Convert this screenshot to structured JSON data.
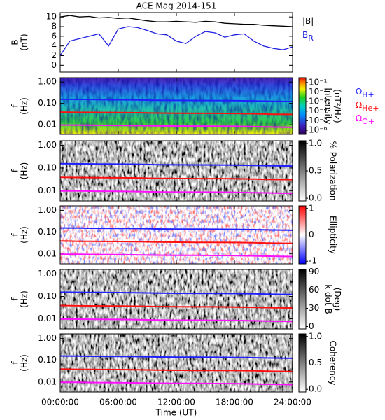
{
  "chart_data": [
    {
      "type": "line",
      "title": "ACE Mag 2014-151",
      "ylabel": [
        "B",
        "(nT)"
      ],
      "x": [
        0,
        1,
        2,
        3,
        4,
        5,
        6,
        7,
        8,
        9,
        10,
        11,
        12,
        13,
        14,
        15,
        16,
        17,
        18,
        19,
        20,
        21,
        22,
        23,
        24
      ],
      "xlim": [
        0,
        24
      ],
      "ylim": [
        -1.4,
        10.9
      ],
      "yticks": [
        0,
        2,
        4,
        6,
        8,
        10
      ],
      "series": [
        {
          "name": "|B|",
          "color": "#000000",
          "values": [
            10,
            10.3,
            10,
            10.1,
            9.8,
            9.9,
            9.7,
            9.8,
            9.5,
            9.2,
            9,
            9,
            9.1,
            9,
            8.9,
            9.1,
            9,
            8.7,
            8.6,
            8.5,
            8.5,
            8.3,
            8.2,
            8.1,
            8
          ]
        },
        {
          "name": "B",
          "subscript": "R",
          "color": "#2020e0",
          "values": [
            2,
            5,
            5.5,
            6,
            6.5,
            4,
            7.5,
            8,
            7.8,
            7.2,
            6.5,
            6.3,
            5,
            4.5,
            6,
            7,
            6.7,
            5.8,
            6.3,
            6.5,
            5,
            4,
            3.5,
            3.2,
            3.8
          ]
        }
      ]
    },
    {
      "type": "spectrogram",
      "colormap": "rainbow",
      "ylabel": [
        "f",
        "(Hz)"
      ],
      "log": true,
      "x": [
        0,
        2,
        4,
        6,
        8,
        10,
        12,
        14,
        16,
        18,
        20,
        22,
        24
      ],
      "xlim": [
        0,
        24
      ],
      "ylim": [
        0.0035,
        1.6
      ],
      "yticks": [
        {
          "value": 1,
          "label": "1.00"
        },
        {
          "value": 0.1,
          "label": "0.10"
        },
        {
          "value": 0.01,
          "label": "0.01"
        }
      ],
      "clabel": [
        "Intensity",
        "(nT²/Hz)"
      ],
      "clog": true,
      "clim": [
        3.6e-07,
        0.32
      ],
      "cticks": [
        {
          "value": 0.1,
          "label": "10⁻¹"
        },
        {
          "value": 0.01,
          "label": "10⁻²"
        },
        {
          "value": 0.001,
          "label": "10⁻³"
        },
        {
          "value": 0.0001,
          "label": "10⁻⁴"
        },
        {
          "value": 1e-05,
          "label": "10⁻⁵"
        },
        {
          "value": 1e-06,
          "label": "10⁻⁶"
        }
      ],
      "series": [
        {
          "name": "Ω",
          "subscript": "H+",
          "color": "#2020ff",
          "values": [
            0.155,
            0.153,
            0.15,
            0.148,
            0.146,
            0.14,
            0.138,
            0.137,
            0.136,
            0.134,
            0.13,
            0.125,
            0.122
          ]
        },
        {
          "name": "Ω",
          "subscript": "He+",
          "color": "#ff1010",
          "values": [
            0.039,
            0.038,
            0.0375,
            0.037,
            0.0365,
            0.035,
            0.0345,
            0.034,
            0.034,
            0.0335,
            0.0325,
            0.031,
            0.0305
          ]
        },
        {
          "name": "Ω",
          "subscript": "O+",
          "color": "#ff10ff",
          "values": [
            0.0097,
            0.0096,
            0.0094,
            0.0093,
            0.0091,
            0.0088,
            0.0086,
            0.0086,
            0.0085,
            0.0084,
            0.0081,
            0.0078,
            0.0076
          ]
        }
      ]
    },
    {
      "type": "spectrogram",
      "colormap": "gray",
      "ylabel": [
        "f",
        "(Hz)"
      ],
      "log": true,
      "x": [
        0,
        2,
        4,
        6,
        8,
        10,
        12,
        14,
        16,
        18,
        20,
        22,
        24
      ],
      "xlim": [
        0,
        24
      ],
      "ylim": [
        0.0035,
        1.6
      ],
      "yticks": [
        {
          "value": 1,
          "label": "1.00"
        },
        {
          "value": 0.1,
          "label": "0.10"
        },
        {
          "value": 0.01,
          "label": "0.01"
        }
      ],
      "clabel": [
        "% Polarization"
      ],
      "clim": [
        -0.05,
        1.05
      ],
      "cticks": [
        {
          "value": 0,
          "label": "0.0"
        },
        {
          "value": 0.5,
          "label": "0.5"
        },
        {
          "value": 1,
          "label": "1.0"
        }
      ],
      "series": [
        {
          "color": "#2020ff",
          "values": [
            0.155,
            0.153,
            0.15,
            0.148,
            0.146,
            0.14,
            0.138,
            0.137,
            0.136,
            0.134,
            0.13,
            0.125,
            0.122
          ]
        },
        {
          "color": "#ff1010",
          "values": [
            0.039,
            0.038,
            0.0375,
            0.037,
            0.0365,
            0.035,
            0.0345,
            0.034,
            0.034,
            0.0335,
            0.0325,
            0.031,
            0.0305
          ]
        },
        {
          "color": "#ff10ff",
          "values": [
            0.0097,
            0.0096,
            0.0094,
            0.0093,
            0.0091,
            0.0088,
            0.0086,
            0.0086,
            0.0085,
            0.0084,
            0.0081,
            0.0078,
            0.0076
          ]
        }
      ]
    },
    {
      "type": "spectrogram",
      "colormap": "bwr",
      "ylabel": [
        "f",
        "(Hz)"
      ],
      "log": true,
      "x": [
        0,
        2,
        4,
        6,
        8,
        10,
        12,
        14,
        16,
        18,
        20,
        22,
        24
      ],
      "xlim": [
        0,
        24
      ],
      "ylim": [
        0.0035,
        1.6
      ],
      "yticks": [
        {
          "value": 1,
          "label": "1.00"
        },
        {
          "value": 0.1,
          "label": "0.10"
        },
        {
          "value": 0.01,
          "label": "0.01"
        }
      ],
      "clabel": [
        "Ellipticity"
      ],
      "clim": [
        -1.1,
        1.1
      ],
      "cticks": [
        1,
        0,
        -1
      ],
      "series": [
        {
          "color": "#2020ff",
          "values": [
            0.155,
            0.153,
            0.15,
            0.148,
            0.146,
            0.14,
            0.138,
            0.137,
            0.136,
            0.134,
            0.13,
            0.125,
            0.122
          ]
        },
        {
          "color": "#ff1010",
          "values": [
            0.039,
            0.038,
            0.0375,
            0.037,
            0.0365,
            0.035,
            0.0345,
            0.034,
            0.034,
            0.0335,
            0.0325,
            0.031,
            0.0305
          ]
        },
        {
          "color": "#ff10ff",
          "values": [
            0.0097,
            0.0096,
            0.0094,
            0.0093,
            0.0091,
            0.0088,
            0.0086,
            0.0086,
            0.0085,
            0.0084,
            0.0081,
            0.0078,
            0.0076
          ]
        }
      ]
    },
    {
      "type": "spectrogram",
      "colormap": "gray",
      "ylabel": [
        "f",
        "(Hz)"
      ],
      "log": true,
      "x": [
        0,
        2,
        4,
        6,
        8,
        10,
        12,
        14,
        16,
        18,
        20,
        22,
        24
      ],
      "xlim": [
        0,
        24
      ],
      "ylim": [
        0.0035,
        1.6
      ],
      "yticks": [
        {
          "value": 1,
          "label": "1.00"
        },
        {
          "value": 0.1,
          "label": "0.10"
        },
        {
          "value": 0.01,
          "label": "0.01"
        }
      ],
      "clabel": [
        "k dot B",
        "(Deg)"
      ],
      "clim": [
        -4,
        94
      ],
      "cticks": [
        90,
        60,
        30,
        0
      ],
      "series": [
        {
          "color": "#2020ff",
          "values": [
            0.155,
            0.153,
            0.15,
            0.148,
            0.146,
            0.14,
            0.138,
            0.137,
            0.136,
            0.134,
            0.13,
            0.125,
            0.122
          ]
        },
        {
          "color": "#ff1010",
          "values": [
            0.039,
            0.038,
            0.0375,
            0.037,
            0.0365,
            0.035,
            0.0345,
            0.034,
            0.034,
            0.0335,
            0.0325,
            0.031,
            0.0305
          ]
        },
        {
          "color": "#ff10ff",
          "values": [
            0.0097,
            0.0096,
            0.0094,
            0.0093,
            0.0091,
            0.0088,
            0.0086,
            0.0086,
            0.0085,
            0.0084,
            0.0081,
            0.0078,
            0.0076
          ]
        }
      ]
    },
    {
      "type": "spectrogram",
      "colormap": "gray",
      "ylabel": [
        "f",
        "(Hz)"
      ],
      "log": true,
      "x": [
        0,
        2,
        4,
        6,
        8,
        10,
        12,
        14,
        16,
        18,
        20,
        22,
        24
      ],
      "xlim": [
        0,
        24
      ],
      "ylim": [
        0.0035,
        1.6
      ],
      "yticks": [
        {
          "value": 1,
          "label": "1.00"
        },
        {
          "value": 0.1,
          "label": "0.10"
        },
        {
          "value": 0.01,
          "label": "0.01"
        }
      ],
      "clabel": [
        "Coherency"
      ],
      "clim": [
        -0.05,
        1.05
      ],
      "cticks": [
        {
          "value": 1,
          "label": "1.0"
        },
        {
          "value": 0.5,
          "label": "0.5"
        },
        {
          "value": 0,
          "label": "0.0"
        }
      ],
      "xlabel": "Time (UT)",
      "xticks": [
        {
          "value": 0,
          "label": "00:00:00"
        },
        {
          "value": 6,
          "label": "06:00:00"
        },
        {
          "value": 12,
          "label": "12:00:00"
        },
        {
          "value": 18,
          "label": "18:00:00"
        },
        {
          "value": 24,
          "label": "24:00:00"
        }
      ],
      "series": [
        {
          "color": "#2020ff",
          "values": [
            0.155,
            0.153,
            0.15,
            0.148,
            0.146,
            0.14,
            0.138,
            0.137,
            0.136,
            0.134,
            0.13,
            0.125,
            0.122
          ]
        },
        {
          "color": "#ff1010",
          "values": [
            0.039,
            0.038,
            0.0375,
            0.037,
            0.0365,
            0.035,
            0.0345,
            0.034,
            0.034,
            0.0335,
            0.0325,
            0.031,
            0.0305
          ]
        },
        {
          "color": "#ff10ff",
          "values": [
            0.0097,
            0.0096,
            0.0094,
            0.0093,
            0.0091,
            0.0088,
            0.0086,
            0.0086,
            0.0085,
            0.0084,
            0.0081,
            0.0078,
            0.0076
          ]
        }
      ]
    }
  ]
}
